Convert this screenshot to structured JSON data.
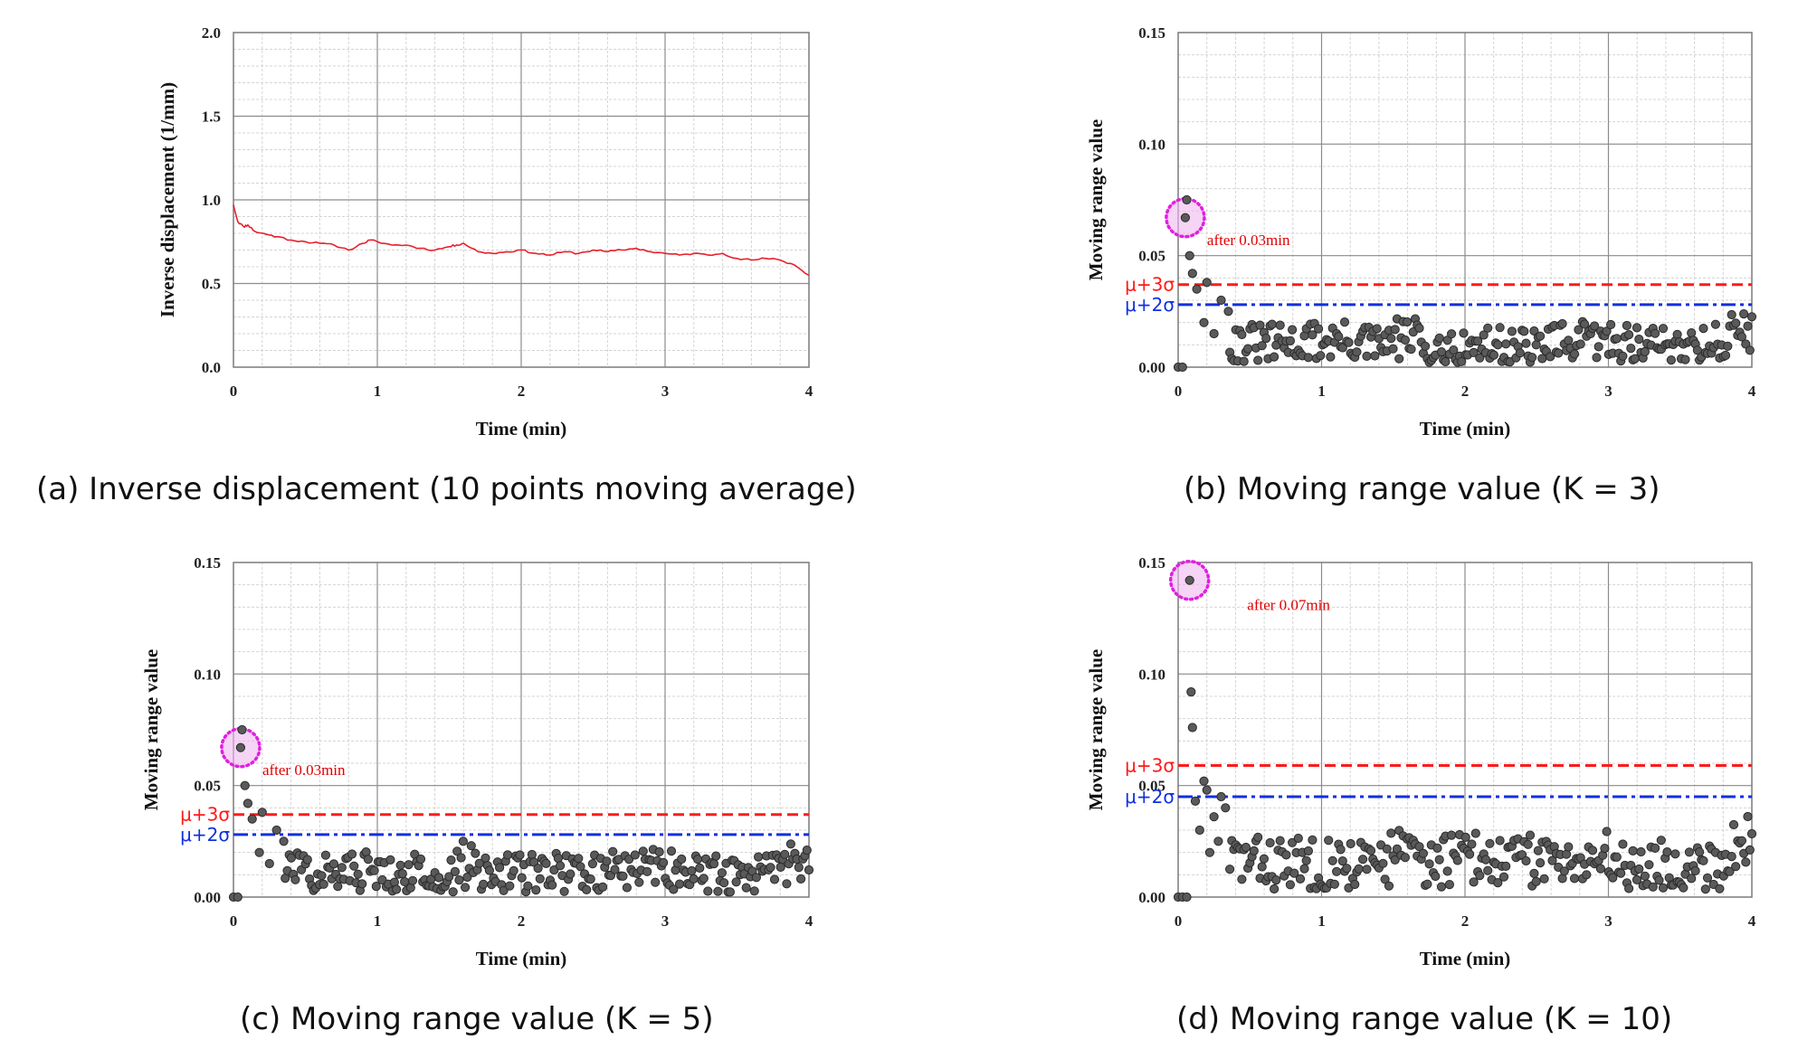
{
  "colors": {
    "line": "#e8202a",
    "point": "#5a5a5a",
    "mu3": "#ff1a1a",
    "mu2": "#1030e0",
    "highlight": "#e020e0",
    "grid_major": "#8c8c8c",
    "grid_minor": "#d4d4d4"
  },
  "chart_data": [
    {
      "id": "a",
      "type": "line",
      "caption": "(a) Inverse displacement (10 points moving average)",
      "xlabel": "Time (min)",
      "ylabel": "Inverse displacement (1/mm)",
      "xlim": [
        0,
        4
      ],
      "ylim": [
        0,
        2.0
      ],
      "xticks": [
        "0",
        "1",
        "2",
        "3",
        "4"
      ],
      "yticks": [
        "0.0",
        "0.5",
        "1.0",
        "1.5",
        "2.0"
      ],
      "grid": true,
      "series": [
        {
          "x": [
            0,
            0.03,
            0.07,
            0.1,
            0.15,
            0.2,
            0.25,
            0.3,
            0.4,
            0.5,
            0.6,
            0.7,
            0.8,
            0.9,
            0.95,
            1.0,
            1.1,
            1.2,
            1.3,
            1.4,
            1.5,
            1.55,
            1.6,
            1.7,
            1.8,
            1.9,
            2.0,
            2.1,
            2.2,
            2.3,
            2.4,
            2.5,
            2.6,
            2.7,
            2.8,
            2.9,
            3.0,
            3.1,
            3.2,
            3.3,
            3.4,
            3.5,
            3.6,
            3.7,
            3.8,
            3.9,
            4.0
          ],
          "y": [
            0.97,
            0.87,
            0.84,
            0.85,
            0.81,
            0.8,
            0.79,
            0.78,
            0.76,
            0.75,
            0.74,
            0.73,
            0.7,
            0.74,
            0.76,
            0.75,
            0.73,
            0.73,
            0.71,
            0.7,
            0.72,
            0.73,
            0.74,
            0.69,
            0.68,
            0.69,
            0.7,
            0.68,
            0.67,
            0.69,
            0.68,
            0.7,
            0.69,
            0.7,
            0.71,
            0.69,
            0.68,
            0.67,
            0.68,
            0.67,
            0.68,
            0.65,
            0.64,
            0.65,
            0.64,
            0.61,
            0.55
          ]
        }
      ]
    },
    {
      "id": "b",
      "type": "scatter",
      "caption": "(b) Moving range value (K = 3)",
      "xlabel": "Time (min)",
      "ylabel": "Moving range value",
      "xlim": [
        0,
        4
      ],
      "ylim": [
        0,
        0.15
      ],
      "xticks": [
        "0",
        "1",
        "2",
        "3",
        "4"
      ],
      "yticks": [
        "0.00",
        "0.05",
        "0.10",
        "0.15"
      ],
      "grid": true,
      "thresholds": [
        {
          "label": "μ+3σ",
          "value": 0.037,
          "style": "dashed"
        },
        {
          "label": "μ+2σ",
          "value": 0.028,
          "style": "dashdot"
        }
      ],
      "highlight": {
        "x": 0.05,
        "y": 0.067
      },
      "annotation": {
        "text": "after 0.03min",
        "x": 0.05,
        "y": 0.058
      },
      "head_points": {
        "x": [
          0.0,
          0.03,
          0.05,
          0.06,
          0.08,
          0.1,
          0.13,
          0.18,
          0.2,
          0.25,
          0.3,
          0.35
        ],
        "y": [
          0.0,
          0.0,
          0.067,
          0.075,
          0.05,
          0.042,
          0.035,
          0.02,
          0.038,
          0.015,
          0.03,
          0.025
        ]
      },
      "baseline": {
        "mean": 0.01,
        "amp": 0.009,
        "seed": 31
      }
    },
    {
      "id": "c",
      "type": "scatter",
      "caption": "(c) Moving range value (K = 5)",
      "xlabel": "Time (min)",
      "ylabel": "Moving range value",
      "xlim": [
        0,
        4
      ],
      "ylim": [
        0,
        0.15
      ],
      "xticks": [
        "0",
        "1",
        "2",
        "3",
        "4"
      ],
      "yticks": [
        "0.00",
        "0.05",
        "0.10",
        "0.15"
      ],
      "grid": true,
      "thresholds": [
        {
          "label": "μ+3σ",
          "value": 0.037,
          "style": "dashed"
        },
        {
          "label": "μ+2σ",
          "value": 0.028,
          "style": "dashdot"
        }
      ],
      "highlight": {
        "x": 0.05,
        "y": 0.067
      },
      "annotation": {
        "text": "after 0.03min",
        "x": 0.05,
        "y": 0.058
      },
      "head_points": {
        "x": [
          0.0,
          0.03,
          0.05,
          0.06,
          0.08,
          0.1,
          0.13,
          0.18,
          0.2,
          0.25,
          0.3,
          0.35
        ],
        "y": [
          0.0,
          0.0,
          0.067,
          0.075,
          0.05,
          0.042,
          0.035,
          0.02,
          0.038,
          0.015,
          0.03,
          0.025
        ]
      },
      "baseline": {
        "mean": 0.011,
        "amp": 0.009,
        "seed": 57
      }
    },
    {
      "id": "d",
      "type": "scatter",
      "caption": "(d) Moving range value (K = 10)",
      "xlabel": "Time (min)",
      "ylabel": "Moving range value",
      "xlim": [
        0,
        4
      ],
      "ylim": [
        0,
        0.15
      ],
      "xticks": [
        "0",
        "1",
        "2",
        "3",
        "4"
      ],
      "yticks": [
        "0.00",
        "0.05",
        "0.10",
        "0.15"
      ],
      "grid": true,
      "thresholds": [
        {
          "label": "μ+3σ",
          "value": 0.059,
          "style": "dashed"
        },
        {
          "label": "μ+2σ",
          "value": 0.045,
          "style": "dashdot"
        }
      ],
      "highlight": {
        "x": 0.08,
        "y": 0.142
      },
      "annotation": {
        "text": "after 0.07min",
        "x": 0.33,
        "y": 0.132
      },
      "head_points": {
        "x": [
          0.0,
          0.03,
          0.06,
          0.08,
          0.09,
          0.1,
          0.12,
          0.15,
          0.18,
          0.2,
          0.22,
          0.25,
          0.28,
          0.3,
          0.33
        ],
        "y": [
          0.0,
          0.0,
          0.0,
          0.142,
          0.092,
          0.076,
          0.043,
          0.03,
          0.052,
          0.048,
          0.02,
          0.036,
          0.025,
          0.045,
          0.04
        ]
      },
      "baseline": {
        "mean": 0.016,
        "amp": 0.012,
        "seed": 83
      }
    }
  ]
}
